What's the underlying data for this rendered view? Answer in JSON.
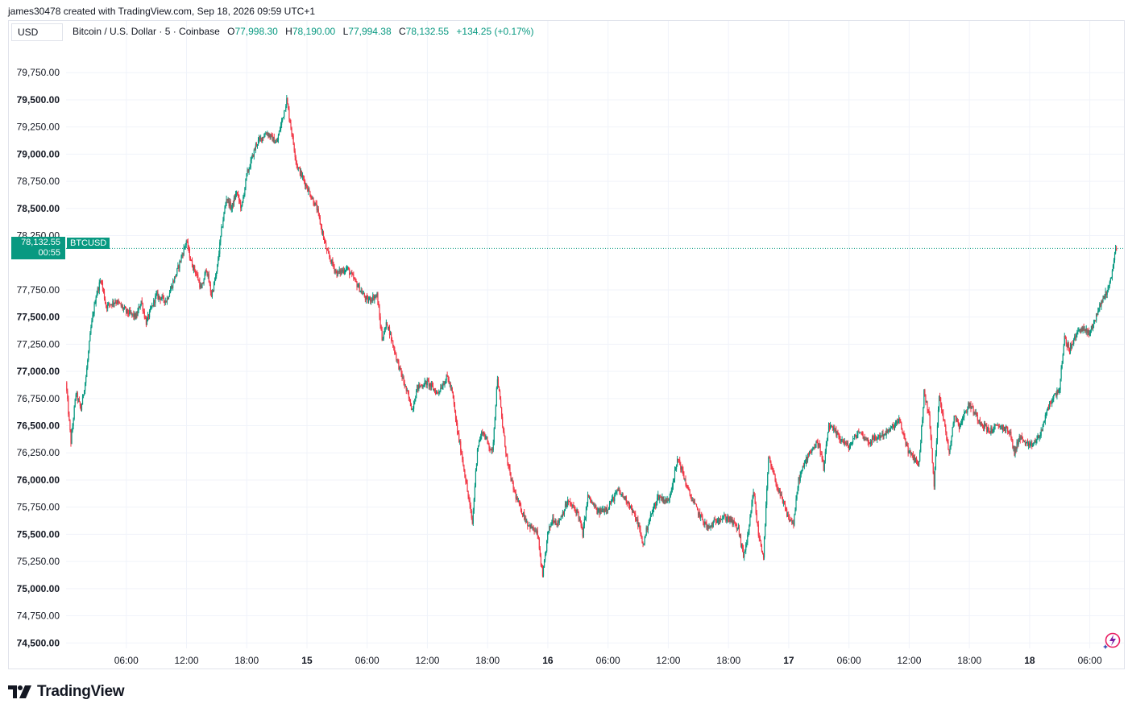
{
  "credit": "james30478 created with TradingView.com, Sep 18, 2026 09:59 UTC+1",
  "currency_button": "USD",
  "legend": {
    "symbol": "Bitcoin / U.S. Dollar · 5 · Coinbase",
    "open_label": "O",
    "open": "77,998.30",
    "high_label": "H",
    "high": "78,190.00",
    "low_label": "L",
    "low": "77,994.38",
    "close_label": "C",
    "close": "78,132.55",
    "change": "+134.25 (+0.17%)"
  },
  "price_badge": {
    "price": "78,132.55",
    "countdown": "00:55"
  },
  "symbol_badge": "BTCUSD",
  "logo_text": "TradingView",
  "colors": {
    "up": "#089981",
    "down": "#f23645",
    "grid": "#f0f3fa",
    "axis_text": "#131722"
  },
  "icons": {
    "logo": "tradingview-logo-icon",
    "bolt": "lightning-icon"
  },
  "chart_data": {
    "type": "candlestick",
    "title": "",
    "ylim": [
      74450,
      79900
    ],
    "y_ticks": [
      {
        "v": 79750,
        "label": "79,750.00",
        "bold": false
      },
      {
        "v": 79500,
        "label": "79,500.00",
        "bold": true
      },
      {
        "v": 79250,
        "label": "79,250.00",
        "bold": false
      },
      {
        "v": 79000,
        "label": "79,000.00",
        "bold": true
      },
      {
        "v": 78750,
        "label": "78,750.00",
        "bold": false
      },
      {
        "v": 78500,
        "label": "78,500.00",
        "bold": true
      },
      {
        "v": 78250,
        "label": "78,250.00",
        "bold": false
      },
      {
        "v": 77750,
        "label": "77,750.00",
        "bold": false
      },
      {
        "v": 77500,
        "label": "77,500.00",
        "bold": true
      },
      {
        "v": 77250,
        "label": "77,250.00",
        "bold": false
      },
      {
        "v": 77000,
        "label": "77,000.00",
        "bold": true
      },
      {
        "v": 76750,
        "label": "76,750.00",
        "bold": false
      },
      {
        "v": 76500,
        "label": "76,500.00",
        "bold": true
      },
      {
        "v": 76250,
        "label": "76,250.00",
        "bold": false
      },
      {
        "v": 76000,
        "label": "76,000.00",
        "bold": true
      },
      {
        "v": 75750,
        "label": "75,750.00",
        "bold": false
      },
      {
        "v": 75500,
        "label": "75,500.00",
        "bold": true
      },
      {
        "v": 75250,
        "label": "75,250.00",
        "bold": false
      },
      {
        "v": 75000,
        "label": "75,000.00",
        "bold": true
      },
      {
        "v": 74750,
        "label": "74,750.00",
        "bold": false
      },
      {
        "v": 74500,
        "label": "74,500.00",
        "bold": true
      }
    ],
    "x_start_hours": 0,
    "x_end_hours": 105,
    "x_ticks": [
      {
        "h": 6,
        "label": "06:00",
        "bold": false
      },
      {
        "h": 12,
        "label": "12:00",
        "bold": false
      },
      {
        "h": 18,
        "label": "18:00",
        "bold": false
      },
      {
        "h": 24,
        "label": "15",
        "bold": true
      },
      {
        "h": 30,
        "label": "06:00",
        "bold": false
      },
      {
        "h": 36,
        "label": "12:00",
        "bold": false
      },
      {
        "h": 42,
        "label": "18:00",
        "bold": false
      },
      {
        "h": 48,
        "label": "16",
        "bold": true
      },
      {
        "h": 54,
        "label": "06:00",
        "bold": false
      },
      {
        "h": 60,
        "label": "12:00",
        "bold": false
      },
      {
        "h": 66,
        "label": "18:00",
        "bold": false
      },
      {
        "h": 72,
        "label": "17",
        "bold": true
      },
      {
        "h": 78,
        "label": "06:00",
        "bold": false
      },
      {
        "h": 84,
        "label": "12:00",
        "bold": false
      },
      {
        "h": 90,
        "label": "18:00",
        "bold": false
      },
      {
        "h": 96,
        "label": "18",
        "bold": true
      },
      {
        "h": 102,
        "label": "06:00",
        "bold": false
      }
    ],
    "last_price": 78132.55,
    "price_path": [
      [
        0,
        76900
      ],
      [
        0.5,
        76350
      ],
      [
        1,
        76800
      ],
      [
        1.5,
        76650
      ],
      [
        2,
        76950
      ],
      [
        2.5,
        77400
      ],
      [
        3,
        77700
      ],
      [
        3.5,
        77850
      ],
      [
        4,
        77600
      ],
      [
        5,
        77650
      ],
      [
        6,
        77550
      ],
      [
        7,
        77500
      ],
      [
        7.5,
        77650
      ],
      [
        8,
        77450
      ],
      [
        9,
        77700
      ],
      [
        10,
        77650
      ],
      [
        11,
        77900
      ],
      [
        12,
        78200
      ],
      [
        12.5,
        78000
      ],
      [
        13,
        77900
      ],
      [
        13.5,
        77750
      ],
      [
        14,
        77950
      ],
      [
        14.5,
        77700
      ],
      [
        15,
        77900
      ],
      [
        15.5,
        78300
      ],
      [
        16,
        78600
      ],
      [
        16.5,
        78500
      ],
      [
        17,
        78650
      ],
      [
        17.5,
        78500
      ],
      [
        18,
        78800
      ],
      [
        19,
        79100
      ],
      [
        20,
        79200
      ],
      [
        21,
        79100
      ],
      [
        22,
        79500
      ],
      [
        22.5,
        79200
      ],
      [
        23,
        78900
      ],
      [
        23.5,
        78800
      ],
      [
        24,
        78700
      ],
      [
        25,
        78500
      ],
      [
        25.5,
        78300
      ],
      [
        26,
        78100
      ],
      [
        27,
        77900
      ],
      [
        28,
        77950
      ],
      [
        29,
        77800
      ],
      [
        30,
        77650
      ],
      [
        31,
        77700
      ],
      [
        31.5,
        77300
      ],
      [
        32,
        77450
      ],
      [
        33,
        77100
      ],
      [
        34,
        76800
      ],
      [
        34.5,
        76650
      ],
      [
        35,
        76850
      ],
      [
        36,
        76900
      ],
      [
        37,
        76800
      ],
      [
        38,
        76950
      ],
      [
        38.5,
        76800
      ],
      [
        39,
        76450
      ],
      [
        39.5,
        76200
      ],
      [
        40,
        75900
      ],
      [
        40.5,
        75600
      ],
      [
        41,
        76300
      ],
      [
        41.5,
        76450
      ],
      [
        42,
        76350
      ],
      [
        42.5,
        76250
      ],
      [
        43,
        76950
      ],
      [
        43.5,
        76500
      ],
      [
        44,
        76150
      ],
      [
        44.5,
        75950
      ],
      [
        45,
        75800
      ],
      [
        45.5,
        75700
      ],
      [
        46,
        75600
      ],
      [
        47,
        75500
      ],
      [
        47.5,
        75100
      ],
      [
        48,
        75500
      ],
      [
        48.5,
        75650
      ],
      [
        49,
        75600
      ],
      [
        50,
        75800
      ],
      [
        51,
        75700
      ],
      [
        51.5,
        75500
      ],
      [
        52,
        75850
      ],
      [
        53,
        75700
      ],
      [
        54,
        75750
      ],
      [
        55,
        75900
      ],
      [
        56,
        75800
      ],
      [
        57,
        75600
      ],
      [
        57.5,
        75400
      ],
      [
        58,
        75600
      ],
      [
        59,
        75850
      ],
      [
        60,
        75800
      ],
      [
        61,
        76200
      ],
      [
        62,
        75900
      ],
      [
        63,
        75700
      ],
      [
        64,
        75550
      ],
      [
        65,
        75650
      ],
      [
        66,
        75650
      ],
      [
        67,
        75550
      ],
      [
        67.5,
        75300
      ],
      [
        68,
        75500
      ],
      [
        68.5,
        75900
      ],
      [
        69,
        75500
      ],
      [
        69.5,
        75300
      ],
      [
        70,
        76200
      ],
      [
        71,
        75900
      ],
      [
        72,
        75650
      ],
      [
        72.5,
        75600
      ],
      [
        73,
        76000
      ],
      [
        74,
        76250
      ],
      [
        75,
        76350
      ],
      [
        75.5,
        76100
      ],
      [
        76,
        76500
      ],
      [
        77,
        76400
      ],
      [
        78,
        76300
      ],
      [
        79,
        76450
      ],
      [
        80,
        76350
      ],
      [
        81,
        76400
      ],
      [
        82,
        76450
      ],
      [
        83,
        76550
      ],
      [
        84,
        76250
      ],
      [
        85,
        76150
      ],
      [
        85.5,
        76800
      ],
      [
        86,
        76600
      ],
      [
        86.5,
        75950
      ],
      [
        87,
        76800
      ],
      [
        88,
        76250
      ],
      [
        88.5,
        76600
      ],
      [
        89,
        76500
      ],
      [
        90,
        76700
      ],
      [
        91,
        76550
      ],
      [
        92,
        76450
      ],
      [
        93,
        76500
      ],
      [
        94,
        76450
      ],
      [
        94.5,
        76250
      ],
      [
        95,
        76400
      ],
      [
        96,
        76300
      ],
      [
        97,
        76400
      ],
      [
        98,
        76700
      ],
      [
        99,
        76850
      ],
      [
        99.5,
        77300
      ],
      [
        100,
        77200
      ],
      [
        101,
        77400
      ],
      [
        102,
        77350
      ],
      [
        103,
        77600
      ],
      [
        104,
        77800
      ],
      [
        104.6,
        78132.55
      ]
    ]
  }
}
